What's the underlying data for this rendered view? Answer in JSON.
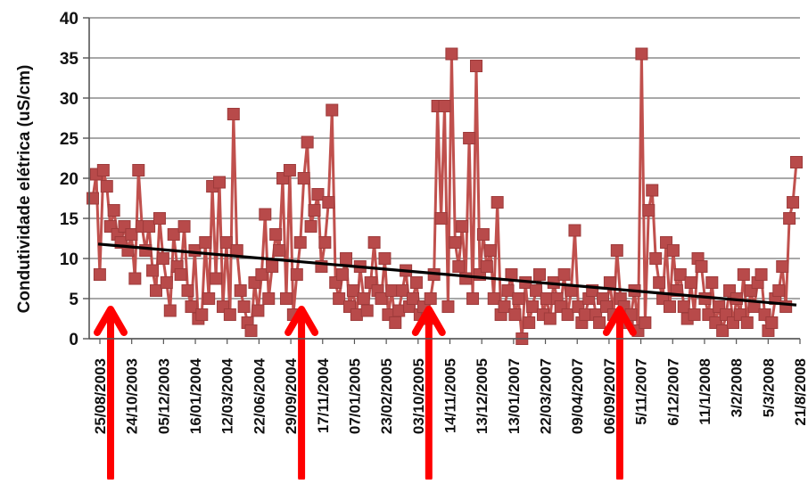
{
  "chart_data": {
    "type": "line",
    "ylabel": "Condutividade elétrica (uS/cm)",
    "xlabel": "",
    "ylim": [
      0,
      40
    ],
    "yticks": [
      0,
      5,
      10,
      15,
      20,
      25,
      30,
      35,
      40
    ],
    "x_tick_labels": [
      "25/08/2003",
      "24/10/2003",
      "05/12/2003",
      "16/01/2004",
      "12/03/2004",
      "22/06/2004",
      "29/09/2004",
      "17/11/2004",
      "07/01/2005",
      "23/02/2005",
      "03/10/2005",
      "14/11/2005",
      "13/12/2005",
      "13/01/2007",
      "22/03/2007",
      "09/04/2007",
      "06/09/2007",
      "5/11/2007",
      "6/12/2007",
      "11/1/2008",
      "3/2/2008",
      "5/3/2008",
      "21/8/2008"
    ],
    "grid": true,
    "series": [
      {
        "color": "#c0504d",
        "marker_color": "#b84a4a",
        "marker": "square",
        "values": [
          17.5,
          20.5,
          8,
          21,
          19,
          14,
          16,
          13,
          12,
          14,
          11,
          13,
          7.5,
          21,
          14,
          11,
          14,
          8.5,
          6,
          15,
          10,
          7,
          3.5,
          13,
          9,
          8,
          14,
          6,
          4,
          11,
          2.5,
          3,
          12,
          5,
          19,
          7.5,
          19.5,
          4,
          12,
          3,
          28,
          11,
          6,
          4,
          2,
          1,
          7,
          3.5,
          8,
          15.5,
          5,
          9,
          13,
          11,
          20,
          5,
          21,
          3,
          8,
          12,
          20,
          24.5,
          14,
          16,
          18,
          9,
          12,
          17,
          28.5,
          7,
          5,
          8,
          10,
          4,
          6,
          3,
          9,
          5,
          3.5,
          7,
          12,
          6,
          5,
          10,
          3,
          6,
          2,
          3.5,
          6,
          8.5,
          4,
          5,
          7,
          3,
          4,
          2.5,
          5,
          8,
          29,
          15,
          29,
          4,
          35.5,
          12,
          9,
          14,
          7.5,
          25,
          5,
          34,
          8,
          13,
          9,
          11,
          5,
          17,
          3,
          4,
          6,
          8,
          3,
          5,
          0,
          7,
          2,
          4,
          6,
          8,
          3,
          5,
          2.5,
          7,
          5,
          4,
          8,
          3,
          6,
          13.5,
          4,
          2,
          3,
          5,
          6,
          3,
          2,
          5,
          4,
          7,
          3,
          11,
          5,
          4,
          2,
          3,
          6,
          1,
          35.5,
          2,
          16,
          18.5,
          10,
          7,
          5,
          12,
          4,
          11,
          6,
          8,
          4,
          2.5,
          7,
          3,
          10,
          9,
          5,
          3,
          7,
          2,
          4,
          1,
          3,
          6,
          2,
          5,
          3,
          8,
          2,
          6,
          4,
          7,
          8,
          3,
          1,
          2,
          5,
          6,
          9,
          4,
          15,
          17,
          22
        ]
      },
      {
        "type": "trendline",
        "color": "#000000",
        "values": [
          11.8,
          4.2
        ]
      }
    ],
    "annotations": [
      {
        "type": "arrow",
        "color": "#ff0000",
        "at_label": "25/08/2003"
      },
      {
        "type": "arrow",
        "color": "#ff0000",
        "at_label": "29/09/2004"
      },
      {
        "type": "arrow",
        "color": "#ff0000",
        "at_label": "03/10/2005"
      },
      {
        "type": "arrow",
        "color": "#ff0000",
        "at_label": "06/09/2007"
      }
    ]
  }
}
